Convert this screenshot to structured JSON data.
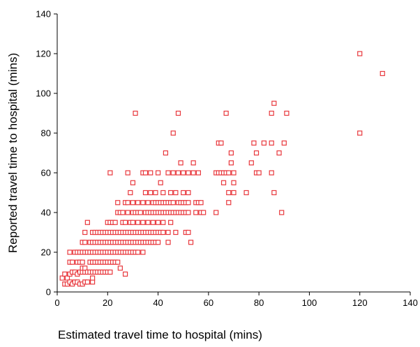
{
  "chart_data": {
    "type": "scatter",
    "title": "",
    "xlabel": "Estimated travel time to hospital (mins)",
    "ylabel": "Reported travel time to hospital (mins)",
    "xlim": [
      0,
      140
    ],
    "ylim": [
      0,
      140
    ],
    "x_ticks": [
      "0",
      "20",
      "40",
      "60",
      "80",
      "100",
      "120",
      "140"
    ],
    "y_ticks": [
      "0",
      "20",
      "40",
      "60",
      "80",
      "100",
      "120",
      "140"
    ],
    "grid": false,
    "legend": "none",
    "marker": "open-square",
    "colors": {
      "marker": "#e8383d",
      "axis": "#000000",
      "background": "#ffffff"
    },
    "series": [
      {
        "points": [
          [
            2,
            7
          ],
          [
            3,
            4
          ],
          [
            3,
            9
          ],
          [
            4,
            4
          ],
          [
            4,
            7
          ],
          [
            5,
            5
          ],
          [
            5,
            9
          ],
          [
            5,
            15
          ],
          [
            5,
            20
          ],
          [
            6,
            4
          ],
          [
            6,
            10
          ],
          [
            6,
            15
          ],
          [
            7,
            5
          ],
          [
            7,
            10
          ],
          [
            7,
            20
          ],
          [
            8,
            5
          ],
          [
            8,
            9
          ],
          [
            8,
            15
          ],
          [
            8,
            20
          ],
          [
            9,
            4
          ],
          [
            9,
            10
          ],
          [
            9,
            15
          ],
          [
            9,
            20
          ],
          [
            10,
            4
          ],
          [
            10,
            10
          ],
          [
            10,
            12
          ],
          [
            10,
            15
          ],
          [
            10,
            20
          ],
          [
            10,
            25
          ],
          [
            11,
            5
          ],
          [
            11,
            10
          ],
          [
            11,
            12
          ],
          [
            11,
            20
          ],
          [
            11,
            25
          ],
          [
            11,
            30
          ],
          [
            12,
            5
          ],
          [
            12,
            10
          ],
          [
            12,
            20
          ],
          [
            12,
            35
          ],
          [
            13,
            10
          ],
          [
            13,
            15
          ],
          [
            13,
            20
          ],
          [
            13,
            25
          ],
          [
            14,
            5
          ],
          [
            14,
            7
          ],
          [
            14,
            10
          ],
          [
            14,
            15
          ],
          [
            14,
            20
          ],
          [
            14,
            25
          ],
          [
            14,
            30
          ],
          [
            15,
            10
          ],
          [
            15,
            15
          ],
          [
            15,
            20
          ],
          [
            15,
            25
          ],
          [
            15,
            30
          ],
          [
            16,
            10
          ],
          [
            16,
            15
          ],
          [
            16,
            20
          ],
          [
            16,
            25
          ],
          [
            16,
            30
          ],
          [
            17,
            10
          ],
          [
            17,
            15
          ],
          [
            17,
            20
          ],
          [
            17,
            25
          ],
          [
            17,
            30
          ],
          [
            18,
            10
          ],
          [
            18,
            15
          ],
          [
            18,
            20
          ],
          [
            18,
            25
          ],
          [
            18,
            30
          ],
          [
            19,
            10
          ],
          [
            19,
            15
          ],
          [
            19,
            20
          ],
          [
            19,
            25
          ],
          [
            19,
            30
          ],
          [
            20,
            10
          ],
          [
            20,
            15
          ],
          [
            20,
            20
          ],
          [
            20,
            25
          ],
          [
            20,
            30
          ],
          [
            20,
            35
          ],
          [
            21,
            10
          ],
          [
            21,
            15
          ],
          [
            21,
            20
          ],
          [
            21,
            25
          ],
          [
            21,
            30
          ],
          [
            21,
            35
          ],
          [
            21,
            60
          ],
          [
            22,
            15
          ],
          [
            22,
            20
          ],
          [
            22,
            25
          ],
          [
            22,
            30
          ],
          [
            22,
            35
          ],
          [
            23,
            15
          ],
          [
            23,
            20
          ],
          [
            23,
            25
          ],
          [
            23,
            30
          ],
          [
            23,
            35
          ],
          [
            24,
            15
          ],
          [
            24,
            20
          ],
          [
            24,
            25
          ],
          [
            24,
            30
          ],
          [
            24,
            40
          ],
          [
            24,
            45
          ],
          [
            25,
            12
          ],
          [
            25,
            20
          ],
          [
            25,
            25
          ],
          [
            25,
            30
          ],
          [
            25,
            40
          ],
          [
            26,
            20
          ],
          [
            26,
            25
          ],
          [
            26,
            30
          ],
          [
            26,
            35
          ],
          [
            26,
            40
          ],
          [
            27,
            9
          ],
          [
            27,
            20
          ],
          [
            27,
            25
          ],
          [
            27,
            30
          ],
          [
            27,
            35
          ],
          [
            27,
            45
          ],
          [
            28,
            20
          ],
          [
            28,
            25
          ],
          [
            28,
            30
          ],
          [
            28,
            40
          ],
          [
            28,
            45
          ],
          [
            28,
            60
          ],
          [
            29,
            20
          ],
          [
            29,
            25
          ],
          [
            29,
            30
          ],
          [
            29,
            35
          ],
          [
            29,
            50
          ],
          [
            30,
            20
          ],
          [
            30,
            25
          ],
          [
            30,
            30
          ],
          [
            30,
            35
          ],
          [
            30,
            40
          ],
          [
            30,
            45
          ],
          [
            30,
            55
          ],
          [
            31,
            20
          ],
          [
            31,
            25
          ],
          [
            31,
            30
          ],
          [
            31,
            40
          ],
          [
            31,
            90
          ],
          [
            32,
            20
          ],
          [
            32,
            25
          ],
          [
            32,
            30
          ],
          [
            32,
            35
          ],
          [
            32,
            40
          ],
          [
            32,
            45
          ],
          [
            33,
            25
          ],
          [
            33,
            30
          ],
          [
            33,
            40
          ],
          [
            34,
            20
          ],
          [
            34,
            25
          ],
          [
            34,
            30
          ],
          [
            34,
            35
          ],
          [
            34,
            45
          ],
          [
            34,
            60
          ],
          [
            35,
            25
          ],
          [
            35,
            30
          ],
          [
            35,
            40
          ],
          [
            35,
            50
          ],
          [
            35,
            60
          ],
          [
            36,
            25
          ],
          [
            36,
            30
          ],
          [
            36,
            35
          ],
          [
            36,
            40
          ],
          [
            36,
            45
          ],
          [
            37,
            25
          ],
          [
            37,
            30
          ],
          [
            37,
            40
          ],
          [
            37,
            50
          ],
          [
            37,
            60
          ],
          [
            38,
            25
          ],
          [
            38,
            30
          ],
          [
            38,
            35
          ],
          [
            38,
            40
          ],
          [
            38,
            45
          ],
          [
            39,
            25
          ],
          [
            39,
            30
          ],
          [
            39,
            40
          ],
          [
            39,
            45
          ],
          [
            39,
            50
          ],
          [
            40,
            25
          ],
          [
            40,
            30
          ],
          [
            40,
            35
          ],
          [
            40,
            40
          ],
          [
            40,
            45
          ],
          [
            40,
            60
          ],
          [
            41,
            30
          ],
          [
            41,
            40
          ],
          [
            41,
            45
          ],
          [
            41,
            55
          ],
          [
            42,
            30
          ],
          [
            42,
            35
          ],
          [
            42,
            40
          ],
          [
            42,
            45
          ],
          [
            42,
            50
          ],
          [
            43,
            40
          ],
          [
            43,
            45
          ],
          [
            43,
            70
          ],
          [
            44,
            25
          ],
          [
            44,
            30
          ],
          [
            44,
            40
          ],
          [
            44,
            45
          ],
          [
            44,
            60
          ],
          [
            45,
            35
          ],
          [
            45,
            40
          ],
          [
            45,
            45
          ],
          [
            45,
            50
          ],
          [
            46,
            40
          ],
          [
            46,
            45
          ],
          [
            46,
            60
          ],
          [
            46,
            80
          ],
          [
            47,
            30
          ],
          [
            47,
            40
          ],
          [
            47,
            50
          ],
          [
            48,
            40
          ],
          [
            48,
            45
          ],
          [
            48,
            60
          ],
          [
            48,
            90
          ],
          [
            49,
            40
          ],
          [
            49,
            45
          ],
          [
            49,
            65
          ],
          [
            50,
            40
          ],
          [
            50,
            45
          ],
          [
            50,
            50
          ],
          [
            50,
            60
          ],
          [
            51,
            30
          ],
          [
            51,
            40
          ],
          [
            51,
            45
          ],
          [
            52,
            30
          ],
          [
            52,
            40
          ],
          [
            52,
            45
          ],
          [
            52,
            50
          ],
          [
            52,
            60
          ],
          [
            53,
            25
          ],
          [
            54,
            60
          ],
          [
            54,
            65
          ],
          [
            55,
            40
          ],
          [
            55,
            45
          ],
          [
            56,
            45
          ],
          [
            56,
            60
          ],
          [
            57,
            40
          ],
          [
            57,
            45
          ],
          [
            58,
            40
          ],
          [
            63,
            40
          ],
          [
            63,
            60
          ],
          [
            64,
            60
          ],
          [
            64,
            75
          ],
          [
            65,
            60
          ],
          [
            65,
            75
          ],
          [
            66,
            55
          ],
          [
            66,
            60
          ],
          [
            67,
            60
          ],
          [
            67,
            90
          ],
          [
            68,
            45
          ],
          [
            68,
            50
          ],
          [
            68,
            60
          ],
          [
            69,
            65
          ],
          [
            69,
            70
          ],
          [
            70,
            50
          ],
          [
            70,
            55
          ],
          [
            70,
            60
          ],
          [
            75,
            50
          ],
          [
            77,
            65
          ],
          [
            78,
            75
          ],
          [
            79,
            60
          ],
          [
            79,
            70
          ],
          [
            80,
            60
          ],
          [
            82,
            75
          ],
          [
            85,
            60
          ],
          [
            85,
            75
          ],
          [
            85,
            90
          ],
          [
            86,
            50
          ],
          [
            86,
            95
          ],
          [
            88,
            70
          ],
          [
            89,
            40
          ],
          [
            90,
            75
          ],
          [
            91,
            90
          ],
          [
            120,
            80
          ],
          [
            120,
            120
          ],
          [
            129,
            110
          ]
        ]
      }
    ]
  }
}
